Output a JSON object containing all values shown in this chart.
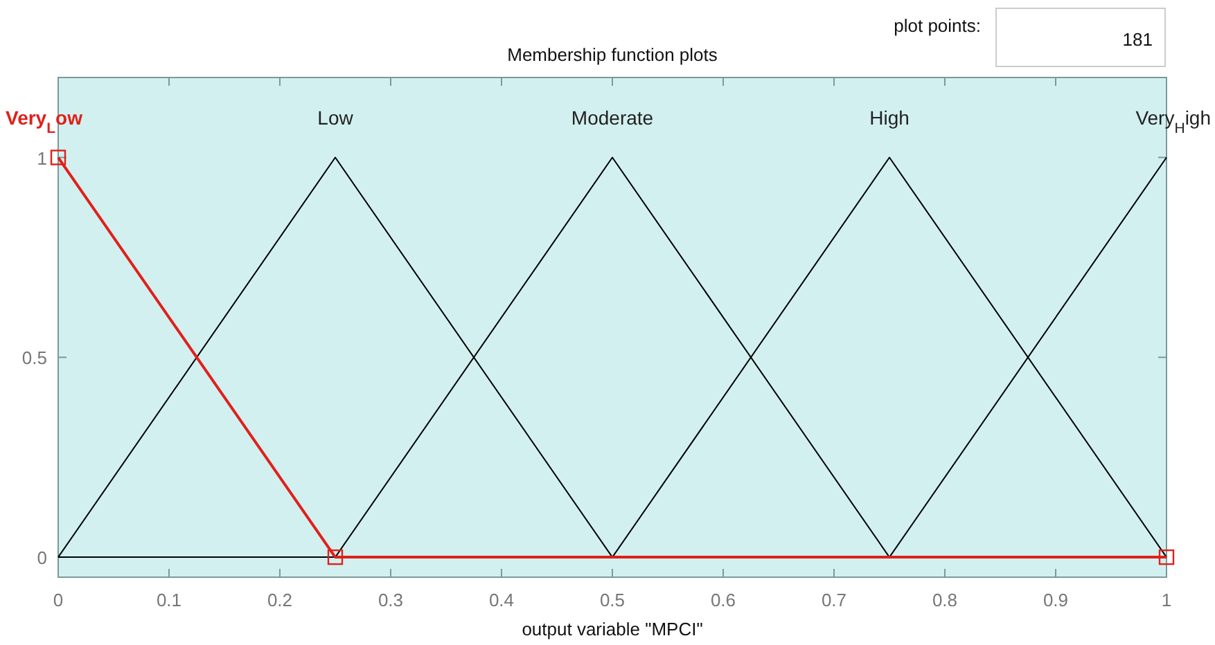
{
  "chart_data": {
    "type": "line",
    "title": "Membership function plots",
    "xlabel": "output variable \"MPCI\"",
    "annotations": [
      "plot points:",
      "181"
    ],
    "xlim": [
      0,
      1
    ],
    "ylim": [
      -0.05,
      1.2
    ],
    "xticks": [
      0,
      0.1,
      0.2,
      0.3,
      0.4,
      0.5,
      0.6,
      0.7,
      0.8,
      0.9,
      1
    ],
    "yticks": [
      0,
      0.5,
      1
    ],
    "grid": false,
    "marker": "none",
    "line_style": "solid",
    "series": [
      {
        "name": "Low",
        "color": "#000000",
        "x": [
          0,
          0.25,
          0.5,
          1
        ],
        "values": [
          0,
          1,
          0,
          0
        ]
      },
      {
        "name": "Moderate",
        "color": "#000000",
        "x": [
          0,
          0.25,
          0.5,
          0.75,
          1
        ],
        "values": [
          0,
          0,
          1,
          0,
          0
        ]
      },
      {
        "name": "High",
        "color": "#000000",
        "x": [
          0,
          0.5,
          0.75,
          1
        ],
        "values": [
          0,
          0,
          1,
          0
        ]
      },
      {
        "name": "Very$_{H}$igh",
        "color": "#000000",
        "x": [
          0,
          0.75,
          1
        ],
        "values": [
          0,
          0,
          1
        ]
      },
      {
        "name": "Very$_{L}$ow",
        "color": "#e0201b",
        "x": [
          0,
          0.25,
          1
        ],
        "values": [
          1,
          0,
          0
        ],
        "marker": "square"
      }
    ]
  }
}
